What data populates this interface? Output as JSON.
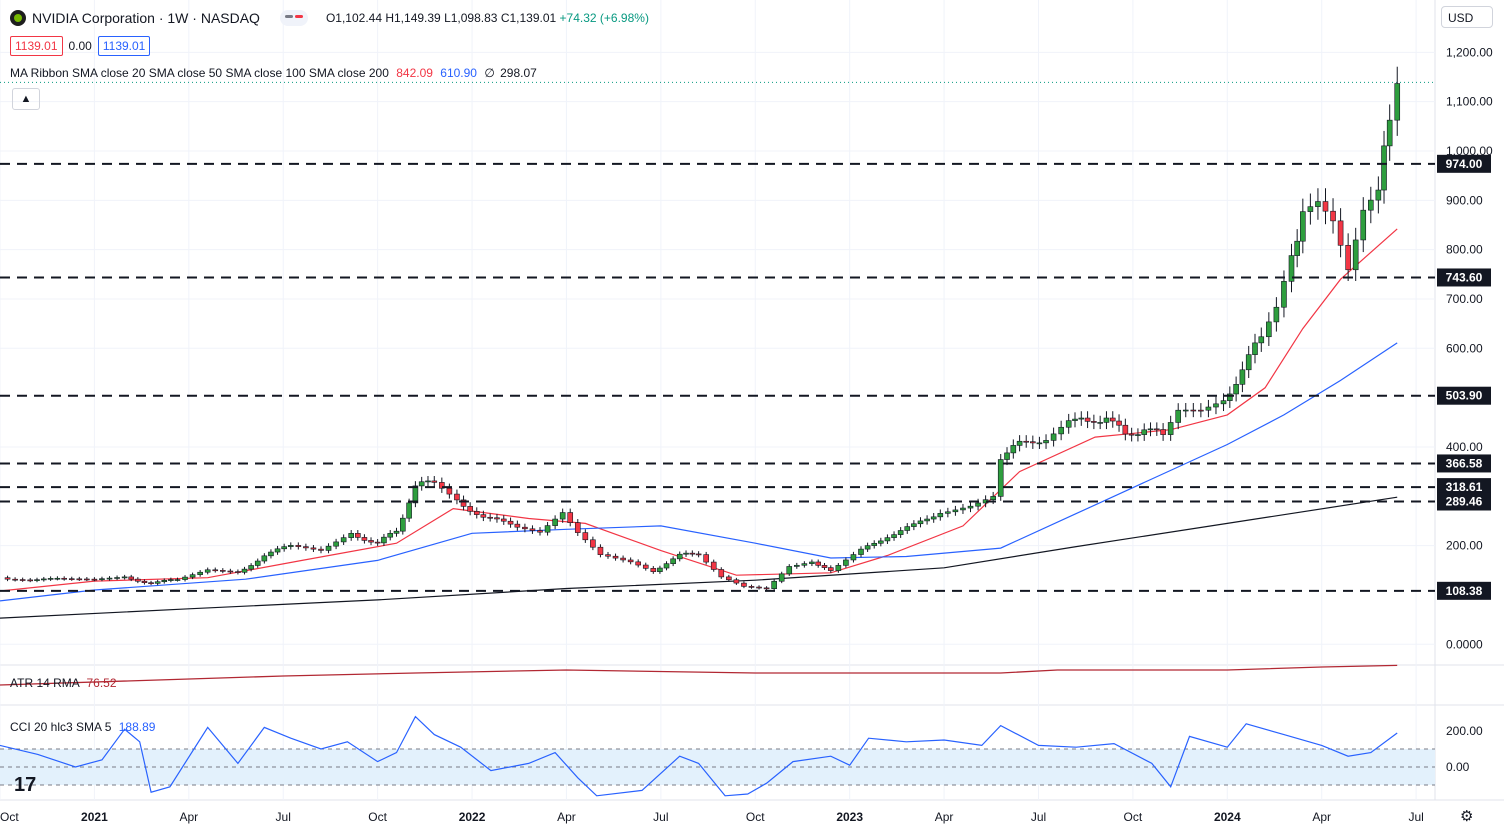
{
  "header": {
    "symbol_title": "NVIDIA Corporation · 1W · NASDAQ",
    "open": "O1,102.44",
    "high": "H1,149.39",
    "low": "L1,098.83",
    "close": "C1,139.01",
    "change": "+74.32 (+6.98%)",
    "bid": "1139.01",
    "spread": "0.00",
    "ask": "1139.01",
    "currency": "USD",
    "collapse_icon": "chevron-up-icon"
  },
  "ma_ribbon": {
    "label": "MA Ribbon SMA close 20 SMA close 50 SMA close 100 SMA close 200",
    "v1": "842.09",
    "v2": "610.90",
    "v3": "∅",
    "v4": "298.07"
  },
  "atr": {
    "label": "ATR 14 RMA",
    "value": "76.52"
  },
  "cci": {
    "label": "CCI 20 hlc3 SMA 5",
    "value": "188.89"
  },
  "colors": {
    "up": "#089981",
    "candle_up": "#2e9e3e",
    "down": "#f23645",
    "sma20": "#f23645",
    "sma50": "#2962ff",
    "sma200": "#131722",
    "cci": "#2962ff",
    "atr": "#b22833"
  },
  "chart_data": {
    "type": "candlestick",
    "title": "NVIDIA Corporation · 1W · NASDAQ",
    "x_labels": [
      "Oct",
      "2021",
      "Apr",
      "Jul",
      "Oct",
      "2022",
      "Apr",
      "Jul",
      "Oct",
      "2023",
      "Apr",
      "Jul",
      "Oct",
      "2024",
      "Apr",
      "Jul"
    ],
    "x_label_dates": [
      2020.75,
      2021.0,
      2021.25,
      2021.5,
      2021.75,
      2022.0,
      2022.25,
      2022.5,
      2022.75,
      2023.0,
      2023.25,
      2023.5,
      2023.75,
      2024.0,
      2024.25,
      2024.5
    ],
    "x_range": [
      2020.75,
      2024.55
    ],
    "y_ticks": [
      "1,200.00",
      "1,100.00",
      "1,000.00",
      "900.00",
      "800.00",
      "700.00",
      "600.00",
      "400.00",
      "200.00",
      "0.0000"
    ],
    "y_tick_values": [
      1200,
      1100,
      1000,
      900,
      800,
      700,
      600,
      400,
      200,
      0
    ],
    "y_range": [
      -42,
      1225
    ],
    "grid": true,
    "levels": [
      {
        "label": "974.00",
        "value": 974.0
      },
      {
        "label": "743.60",
        "value": 743.6
      },
      {
        "label": "503.90",
        "value": 503.9
      },
      {
        "label": "366.58",
        "value": 366.58
      },
      {
        "label": "318.61",
        "value": 318.61
      },
      {
        "label": "289.46",
        "value": 289.46
      },
      {
        "label": "108.38",
        "value": 108.38
      }
    ],
    "last_close": 1139.01,
    "close_series": [
      {
        "t": 2020.75,
        "v": 135
      },
      {
        "t": 2020.83,
        "v": 132
      },
      {
        "t": 2020.92,
        "v": 131
      },
      {
        "t": 2021.0,
        "v": 130
      },
      {
        "t": 2021.08,
        "v": 135
      },
      {
        "t": 2021.15,
        "v": 125
      },
      {
        "t": 2021.22,
        "v": 130
      },
      {
        "t": 2021.3,
        "v": 150
      },
      {
        "t": 2021.38,
        "v": 145
      },
      {
        "t": 2021.45,
        "v": 180
      },
      {
        "t": 2021.52,
        "v": 200
      },
      {
        "t": 2021.6,
        "v": 190
      },
      {
        "t": 2021.68,
        "v": 225
      },
      {
        "t": 2021.75,
        "v": 205
      },
      {
        "t": 2021.8,
        "v": 230
      },
      {
        "t": 2021.85,
        "v": 320
      },
      {
        "t": 2021.9,
        "v": 330
      },
      {
        "t": 2021.96,
        "v": 295
      },
      {
        "t": 2022.03,
        "v": 255
      },
      {
        "t": 2022.12,
        "v": 240
      },
      {
        "t": 2022.18,
        "v": 230
      },
      {
        "t": 2022.24,
        "v": 270
      },
      {
        "t": 2022.28,
        "v": 230
      },
      {
        "t": 2022.34,
        "v": 185
      },
      {
        "t": 2022.42,
        "v": 170
      },
      {
        "t": 2022.48,
        "v": 150
      },
      {
        "t": 2022.55,
        "v": 180
      },
      {
        "t": 2022.6,
        "v": 185
      },
      {
        "t": 2022.66,
        "v": 140
      },
      {
        "t": 2022.72,
        "v": 120
      },
      {
        "t": 2022.78,
        "v": 115
      },
      {
        "t": 2022.84,
        "v": 160
      },
      {
        "t": 2022.9,
        "v": 170
      },
      {
        "t": 2022.95,
        "v": 146
      },
      {
        "t": 2023.03,
        "v": 190
      },
      {
        "t": 2023.1,
        "v": 220
      },
      {
        "t": 2023.17,
        "v": 240
      },
      {
        "t": 2023.24,
        "v": 270
      },
      {
        "t": 2023.32,
        "v": 285
      },
      {
        "t": 2023.38,
        "v": 305
      },
      {
        "t": 2023.4,
        "v": 380
      },
      {
        "t": 2023.45,
        "v": 405
      },
      {
        "t": 2023.52,
        "v": 420
      },
      {
        "t": 2023.58,
        "v": 460
      },
      {
        "t": 2023.63,
        "v": 445
      },
      {
        "t": 2023.68,
        "v": 465
      },
      {
        "t": 2023.73,
        "v": 420
      },
      {
        "t": 2023.78,
        "v": 440
      },
      {
        "t": 2023.83,
        "v": 420
      },
      {
        "t": 2023.87,
        "v": 470
      },
      {
        "t": 2023.93,
        "v": 470
      },
      {
        "t": 2023.99,
        "v": 490
      },
      {
        "t": 2024.04,
        "v": 560
      },
      {
        "t": 2024.09,
        "v": 620
      },
      {
        "t": 2024.13,
        "v": 680
      },
      {
        "t": 2024.17,
        "v": 785
      },
      {
        "t": 2024.2,
        "v": 880
      },
      {
        "t": 2024.24,
        "v": 900
      },
      {
        "t": 2024.28,
        "v": 860
      },
      {
        "t": 2024.32,
        "v": 760
      },
      {
        "t": 2024.36,
        "v": 880
      },
      {
        "t": 2024.4,
        "v": 920
      },
      {
        "t": 2024.43,
        "v": 1064
      },
      {
        "t": 2024.45,
        "v": 1139
      }
    ],
    "series": [
      {
        "name": "SMA close 20",
        "points": [
          [
            2020.75,
            108
          ],
          [
            2021.0,
            128
          ],
          [
            2021.3,
            135
          ],
          [
            2021.55,
            170
          ],
          [
            2021.8,
            205
          ],
          [
            2021.95,
            275
          ],
          [
            2022.15,
            255
          ],
          [
            2022.3,
            245
          ],
          [
            2022.5,
            190
          ],
          [
            2022.7,
            140
          ],
          [
            2022.95,
            145
          ],
          [
            2023.1,
            180
          ],
          [
            2023.3,
            240
          ],
          [
            2023.45,
            350
          ],
          [
            2023.65,
            420
          ],
          [
            2023.85,
            435
          ],
          [
            2024.0,
            465
          ],
          [
            2024.1,
            520
          ],
          [
            2024.2,
            640
          ],
          [
            2024.3,
            740
          ],
          [
            2024.45,
            842.09
          ]
        ]
      },
      {
        "name": "SMA close 50",
        "points": [
          [
            2020.75,
            88
          ],
          [
            2021.0,
            110
          ],
          [
            2021.4,
            132
          ],
          [
            2021.75,
            170
          ],
          [
            2022.0,
            225
          ],
          [
            2022.25,
            233
          ],
          [
            2022.5,
            240
          ],
          [
            2022.75,
            205
          ],
          [
            2022.95,
            175
          ],
          [
            2023.15,
            178
          ],
          [
            2023.4,
            195
          ],
          [
            2023.6,
            265
          ],
          [
            2023.8,
            335
          ],
          [
            2024.0,
            405
          ],
          [
            2024.15,
            465
          ],
          [
            2024.3,
            535
          ],
          [
            2024.45,
            610.9
          ]
        ]
      },
      {
        "name": "SMA close 200",
        "points": [
          [
            2020.75,
            53
          ],
          [
            2021.25,
            72
          ],
          [
            2021.75,
            90
          ],
          [
            2022.25,
            113
          ],
          [
            2022.75,
            130
          ],
          [
            2023.25,
            155
          ],
          [
            2023.6,
            198
          ],
          [
            2024.0,
            245
          ],
          [
            2024.45,
            298.07
          ]
        ]
      }
    ],
    "atr_points": [
      [
        2020.75,
        70
      ],
      [
        2021.5,
        73
      ],
      [
        2021.85,
        74
      ],
      [
        2022.25,
        75
      ],
      [
        2022.75,
        74
      ],
      [
        2023.4,
        74
      ],
      [
        2023.55,
        75
      ],
      [
        2024.0,
        75
      ],
      [
        2024.25,
        76
      ],
      [
        2024.45,
        76.52
      ]
    ],
    "cci": {
      "label": "CCI 20 hlc3 SMA 5",
      "y_ticks": [
        "200.00",
        "0.00"
      ],
      "y_tick_values": [
        200,
        0
      ],
      "band": [
        -100,
        100
      ],
      "points": [
        [
          2020.75,
          120
        ],
        [
          2020.85,
          70
        ],
        [
          2020.95,
          0
        ],
        [
          2021.02,
          40
        ],
        [
          2021.08,
          210
        ],
        [
          2021.12,
          140
        ],
        [
          2021.15,
          -140
        ],
        [
          2021.2,
          -110
        ],
        [
          2021.3,
          220
        ],
        [
          2021.38,
          20
        ],
        [
          2021.45,
          220
        ],
        [
          2021.52,
          160
        ],
        [
          2021.6,
          100
        ],
        [
          2021.67,
          140
        ],
        [
          2021.75,
          30
        ],
        [
          2021.8,
          80
        ],
        [
          2021.85,
          280
        ],
        [
          2021.9,
          180
        ],
        [
          2021.97,
          110
        ],
        [
          2022.05,
          -20
        ],
        [
          2022.15,
          20
        ],
        [
          2022.22,
          80
        ],
        [
          2022.28,
          -60
        ],
        [
          2022.33,
          -160
        ],
        [
          2022.45,
          -130
        ],
        [
          2022.55,
          60
        ],
        [
          2022.6,
          20
        ],
        [
          2022.67,
          -160
        ],
        [
          2022.73,
          -150
        ],
        [
          2022.78,
          -90
        ],
        [
          2022.85,
          30
        ],
        [
          2022.95,
          60
        ],
        [
          2023.0,
          10
        ],
        [
          2023.05,
          160
        ],
        [
          2023.15,
          140
        ],
        [
          2023.25,
          150
        ],
        [
          2023.35,
          120
        ],
        [
          2023.4,
          230
        ],
        [
          2023.5,
          120
        ],
        [
          2023.6,
          110
        ],
        [
          2023.7,
          130
        ],
        [
          2023.8,
          20
        ],
        [
          2023.85,
          -110
        ],
        [
          2023.9,
          170
        ],
        [
          2024.0,
          110
        ],
        [
          2024.05,
          240
        ],
        [
          2024.15,
          180
        ],
        [
          2024.25,
          120
        ],
        [
          2024.32,
          60
        ],
        [
          2024.38,
          80
        ],
        [
          2024.45,
          188.89
        ]
      ]
    }
  }
}
